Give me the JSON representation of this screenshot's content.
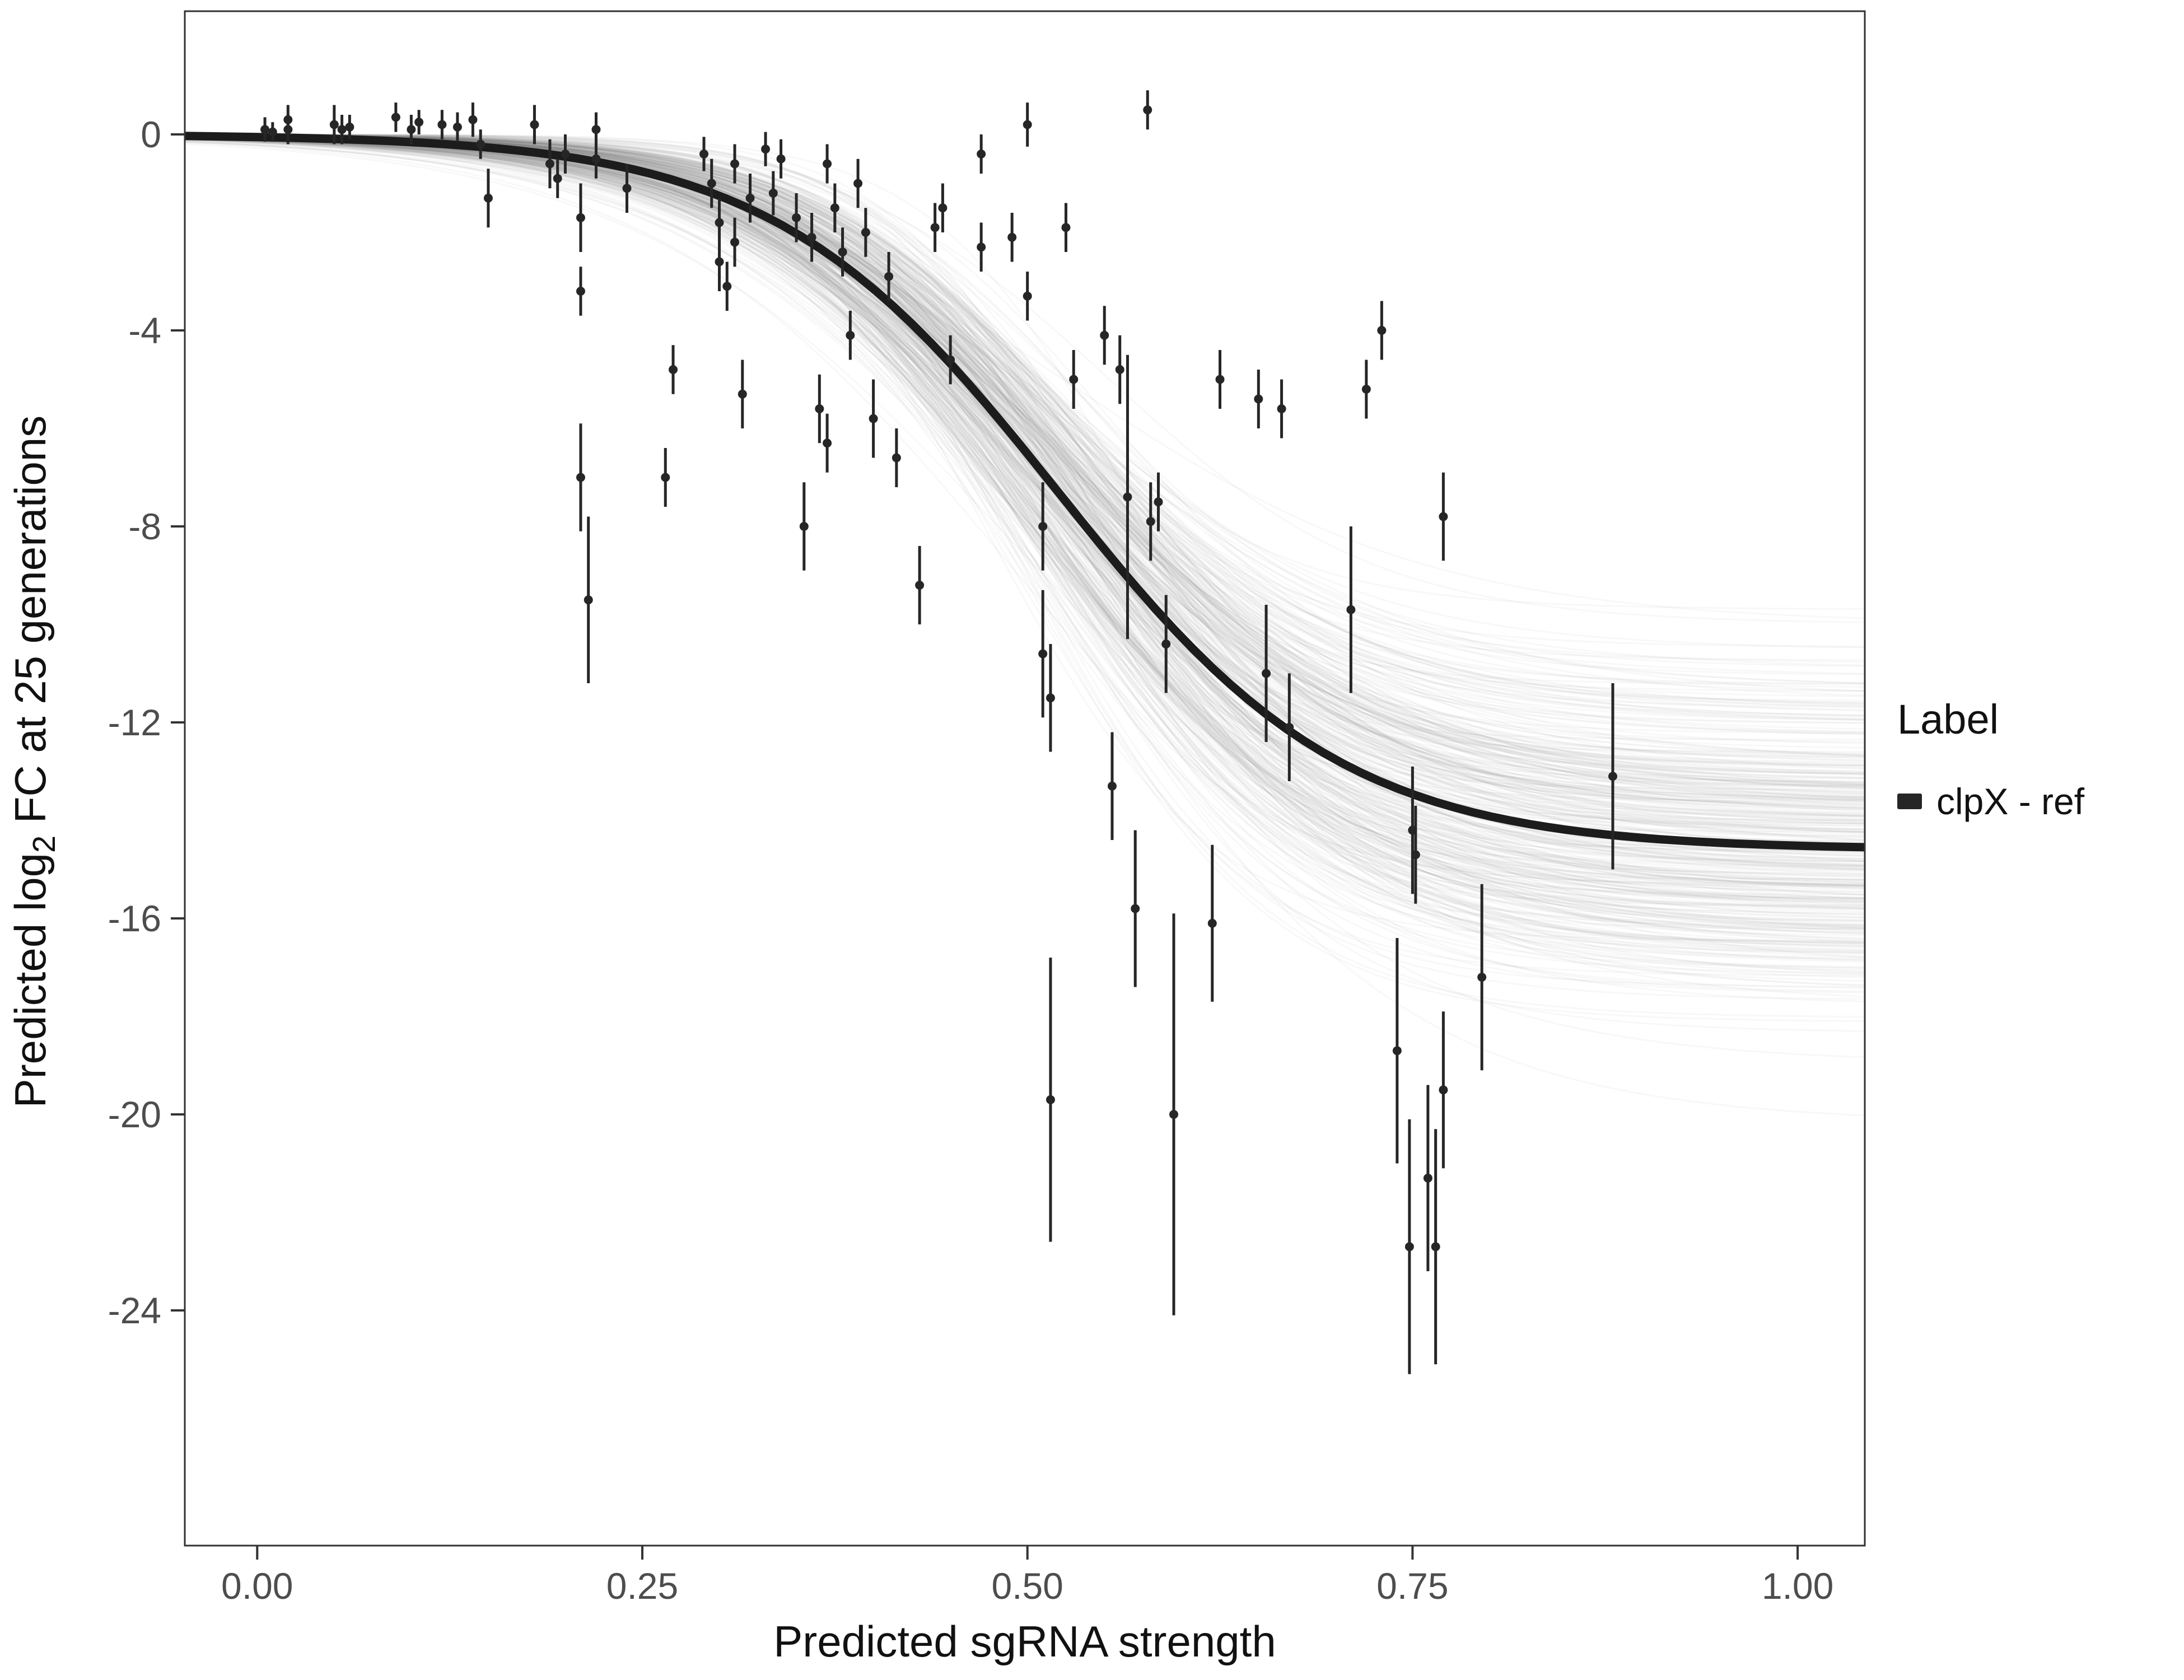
{
  "figure": {
    "background": "#ffffff",
    "panel_border_color": "#333333"
  },
  "chart_data": {
    "type": "scatter",
    "title": "",
    "xlabel": "Predicted sgRNA strength",
    "ylabel": "Predicted log2 FC at 25 generations",
    "ylabel_parts": {
      "prefix": "Predicted  log",
      "sub": "2",
      "suffix": " FC at 25 generations"
    },
    "axes": {
      "xlim": [
        -0.047,
        1.0436
      ],
      "ylim": [
        -28.8,
        2.514
      ],
      "x_ticks": [
        0.0,
        0.25,
        0.5,
        0.75,
        1.0
      ],
      "x_tick_labels": [
        "0.00",
        "0.25",
        "0.50",
        "0.75",
        "1.00"
      ],
      "y_ticks": [
        0,
        -4,
        -8,
        -12,
        -16,
        -20,
        -24
      ],
      "y_tick_labels": [
        "0",
        "-4",
        "-8",
        "-12",
        "-16",
        "-20",
        "-24"
      ],
      "grid": false,
      "tick_color": "#333333",
      "tick_label_color": "#4d4d4d"
    },
    "legend": {
      "title": "Label",
      "position": "right",
      "entries": [
        {
          "label": "clpX - ref",
          "color": "#262626"
        }
      ]
    },
    "fit_curve": {
      "model": "logistic",
      "floor": -14.6,
      "x0": 0.52,
      "k": 0.093,
      "color": "#1c1c1c",
      "stroke_width": 15
    },
    "bootstrap_band": {
      "count": 380,
      "color": "#808080",
      "opacity": 0.055,
      "stroke_width": 3,
      "floor_sd": 1.7,
      "x0_sd": 0.02,
      "k_rel_sd": 0.13,
      "seed": 42
    },
    "point_style": {
      "color": "#262626",
      "radius": 8,
      "errorbar_width": 5
    },
    "points": [
      [
        0.005,
        0.1,
        0.25
      ],
      [
        0.01,
        0.05,
        0.2
      ],
      [
        0.02,
        0.1,
        0.3
      ],
      [
        0.02,
        0.3,
        0.3
      ],
      [
        0.05,
        0.2,
        0.4
      ],
      [
        0.055,
        0.1,
        0.3
      ],
      [
        0.06,
        0.15,
        0.25
      ],
      [
        0.09,
        0.35,
        0.3
      ],
      [
        0.1,
        0.1,
        0.3
      ],
      [
        0.105,
        0.25,
        0.25
      ],
      [
        0.12,
        0.2,
        0.3
      ],
      [
        0.13,
        0.15,
        0.3
      ],
      [
        0.14,
        0.3,
        0.35
      ],
      [
        0.145,
        -0.2,
        0.3
      ],
      [
        0.15,
        -1.3,
        0.6
      ],
      [
        0.18,
        0.2,
        0.4
      ],
      [
        0.19,
        -0.6,
        0.5
      ],
      [
        0.195,
        -0.9,
        0.4
      ],
      [
        0.2,
        -0.4,
        0.4
      ],
      [
        0.21,
        -1.7,
        0.7
      ],
      [
        0.21,
        -3.2,
        0.5
      ],
      [
        0.21,
        -7.0,
        1.1
      ],
      [
        0.215,
        -9.5,
        1.7
      ],
      [
        0.22,
        0.1,
        0.35
      ],
      [
        0.22,
        -0.5,
        0.4
      ],
      [
        0.24,
        -1.1,
        0.5
      ],
      [
        0.265,
        -7.0,
        0.6
      ],
      [
        0.27,
        -4.8,
        0.5
      ],
      [
        0.29,
        -0.4,
        0.35
      ],
      [
        0.295,
        -1.0,
        0.5
      ],
      [
        0.3,
        -1.8,
        0.5
      ],
      [
        0.3,
        -2.6,
        0.6
      ],
      [
        0.305,
        -3.1,
        0.5
      ],
      [
        0.31,
        -0.6,
        0.4
      ],
      [
        0.31,
        -2.2,
        0.5
      ],
      [
        0.315,
        -5.3,
        0.7
      ],
      [
        0.32,
        -1.3,
        0.5
      ],
      [
        0.33,
        -0.3,
        0.35
      ],
      [
        0.335,
        -1.2,
        0.45
      ],
      [
        0.34,
        -0.5,
        0.4
      ],
      [
        0.35,
        -1.7,
        0.5
      ],
      [
        0.355,
        -8.0,
        0.9
      ],
      [
        0.36,
        -2.1,
        0.5
      ],
      [
        0.365,
        -5.6,
        0.7
      ],
      [
        0.37,
        -0.6,
        0.4
      ],
      [
        0.37,
        -6.3,
        0.6
      ],
      [
        0.375,
        -1.5,
        0.5
      ],
      [
        0.38,
        -2.4,
        0.5
      ],
      [
        0.385,
        -4.1,
        0.5
      ],
      [
        0.39,
        -1.0,
        0.5
      ],
      [
        0.395,
        -2.0,
        0.5
      ],
      [
        0.4,
        -5.8,
        0.8
      ],
      [
        0.41,
        -2.9,
        0.5
      ],
      [
        0.415,
        -6.6,
        0.6
      ],
      [
        0.43,
        -9.2,
        0.8
      ],
      [
        0.44,
        -1.9,
        0.5
      ],
      [
        0.445,
        -1.5,
        0.5
      ],
      [
        0.45,
        -4.6,
        0.5
      ],
      [
        0.47,
        -0.4,
        0.4
      ],
      [
        0.47,
        -2.3,
        0.5
      ],
      [
        0.49,
        -2.1,
        0.5
      ],
      [
        0.5,
        0.2,
        0.45
      ],
      [
        0.5,
        -3.3,
        0.5
      ],
      [
        0.51,
        -8.0,
        0.9
      ],
      [
        0.51,
        -10.6,
        1.3
      ],
      [
        0.515,
        -11.5,
        1.1
      ],
      [
        0.515,
        -19.7,
        2.9
      ],
      [
        0.525,
        -1.9,
        0.5
      ],
      [
        0.53,
        -5.0,
        0.6
      ],
      [
        0.55,
        -4.1,
        0.6
      ],
      [
        0.555,
        -13.3,
        1.1
      ],
      [
        0.56,
        -4.8,
        0.7
      ],
      [
        0.565,
        -7.4,
        2.9
      ],
      [
        0.57,
        -15.8,
        1.6
      ],
      [
        0.578,
        0.5,
        0.4
      ],
      [
        0.58,
        -7.9,
        0.8
      ],
      [
        0.585,
        -7.5,
        0.6
      ],
      [
        0.59,
        -10.4,
        1.0
      ],
      [
        0.595,
        -20.0,
        4.1
      ],
      [
        0.62,
        -16.1,
        1.6
      ],
      [
        0.625,
        -5.0,
        0.6
      ],
      [
        0.65,
        -5.4,
        0.6
      ],
      [
        0.655,
        -11.0,
        1.4
      ],
      [
        0.665,
        -5.6,
        0.6
      ],
      [
        0.67,
        -12.1,
        1.1
      ],
      [
        0.71,
        -9.7,
        1.7
      ],
      [
        0.72,
        -5.2,
        0.6
      ],
      [
        0.73,
        -4.0,
        0.6
      ],
      [
        0.74,
        -18.7,
        2.3
      ],
      [
        0.75,
        -14.2,
        1.3
      ],
      [
        0.752,
        -14.7,
        1.0
      ],
      [
        0.748,
        -22.7,
        2.6
      ],
      [
        0.76,
        -21.3,
        1.9
      ],
      [
        0.765,
        -22.7,
        2.4
      ],
      [
        0.77,
        -19.5,
        1.6
      ],
      [
        0.77,
        -7.8,
        0.9
      ],
      [
        0.795,
        -17.2,
        1.9
      ],
      [
        0.88,
        -13.1,
        1.9
      ]
    ]
  }
}
